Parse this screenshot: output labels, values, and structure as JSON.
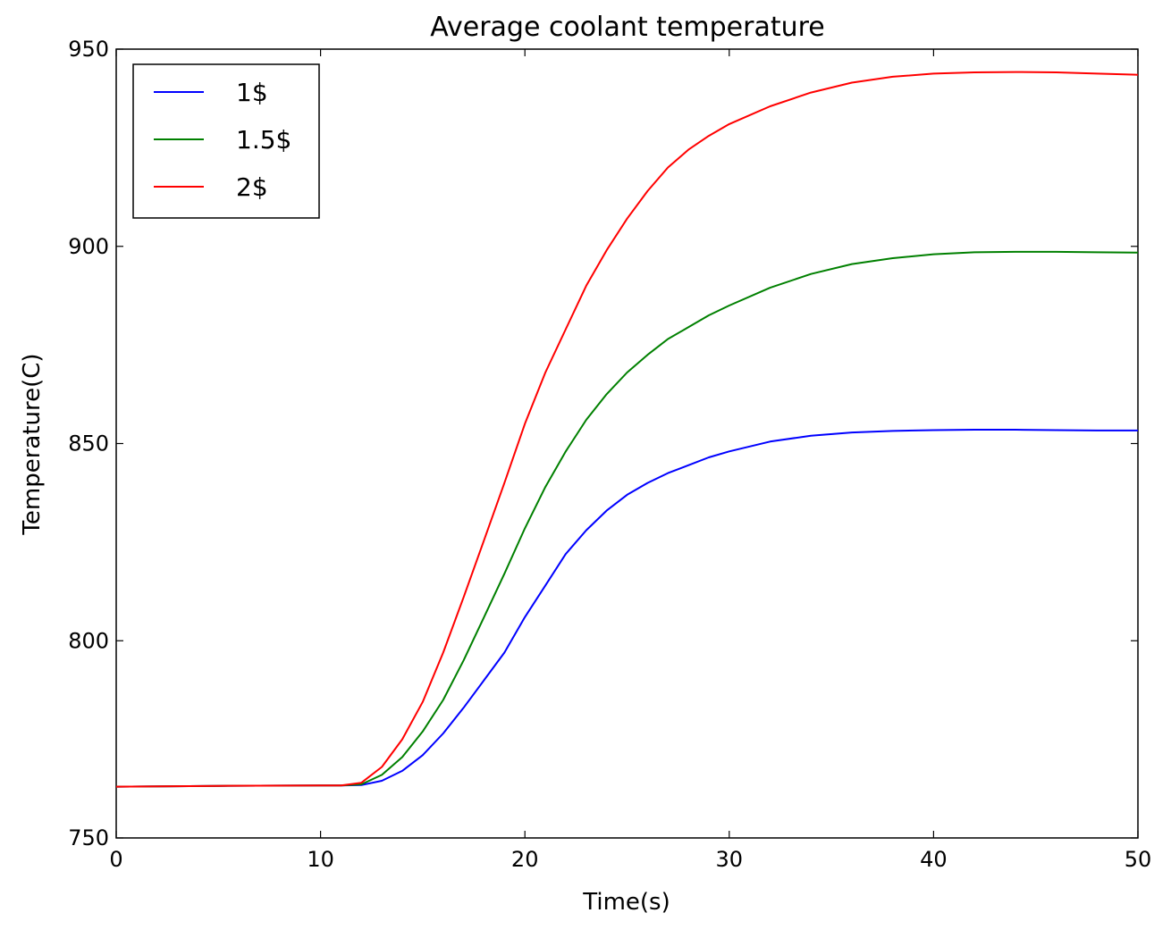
{
  "chart_data": {
    "type": "line",
    "title": "Average coolant temperature",
    "xlabel": "Time(s)",
    "ylabel": "Temperature(C)",
    "xlim": [
      0,
      50
    ],
    "ylim": [
      750,
      950
    ],
    "xticks": [
      0,
      10,
      20,
      30,
      40,
      50
    ],
    "xtick_labels": [
      "0",
      "10",
      "20",
      "30",
      "40",
      "50"
    ],
    "yticks": [
      750,
      800,
      850,
      900,
      950
    ],
    "ytick_labels": [
      "750",
      "800",
      "850",
      "900",
      "950"
    ],
    "grid": false,
    "legend_position": "top-left",
    "x": [
      0,
      5,
      10,
      11,
      12,
      13,
      14,
      15,
      16,
      17,
      18,
      19,
      20,
      21,
      22,
      23,
      24,
      25,
      26,
      27,
      28,
      29,
      30,
      32,
      34,
      36,
      38,
      40,
      42,
      44,
      46,
      48,
      50
    ],
    "series": [
      {
        "name": "1$",
        "color": "#0000ff",
        "values": [
          763,
          763.2,
          763.3,
          763.3,
          763.4,
          764.5,
          767,
          771,
          776.5,
          783,
          790,
          797,
          806,
          814,
          822,
          828,
          833,
          837,
          840,
          842.5,
          844.5,
          846.5,
          848,
          850.5,
          852,
          852.8,
          853.2,
          853.4,
          853.5,
          853.5,
          853.4,
          853.3,
          853.3
        ]
      },
      {
        "name": "1.5$",
        "color": "#008000",
        "values": [
          763,
          763.2,
          763.3,
          763.3,
          763.6,
          766,
          770.5,
          777,
          785,
          795,
          806,
          817,
          828.5,
          839,
          848,
          856,
          862.5,
          868,
          872.5,
          876.5,
          879.5,
          882.5,
          885,
          889.5,
          893,
          895.5,
          897,
          898,
          898.5,
          898.6,
          898.6,
          898.5,
          898.4
        ]
      },
      {
        "name": "2$",
        "color": "#ff0000",
        "values": [
          763,
          763.2,
          763.3,
          763.3,
          764,
          768,
          775,
          784.5,
          797,
          811,
          825.5,
          840,
          855,
          868,
          879,
          890,
          899,
          907,
          914,
          920,
          924.5,
          928,
          931,
          935.5,
          939,
          941.5,
          943,
          943.8,
          944.1,
          944.2,
          944.1,
          943.8,
          943.5
        ]
      }
    ]
  }
}
